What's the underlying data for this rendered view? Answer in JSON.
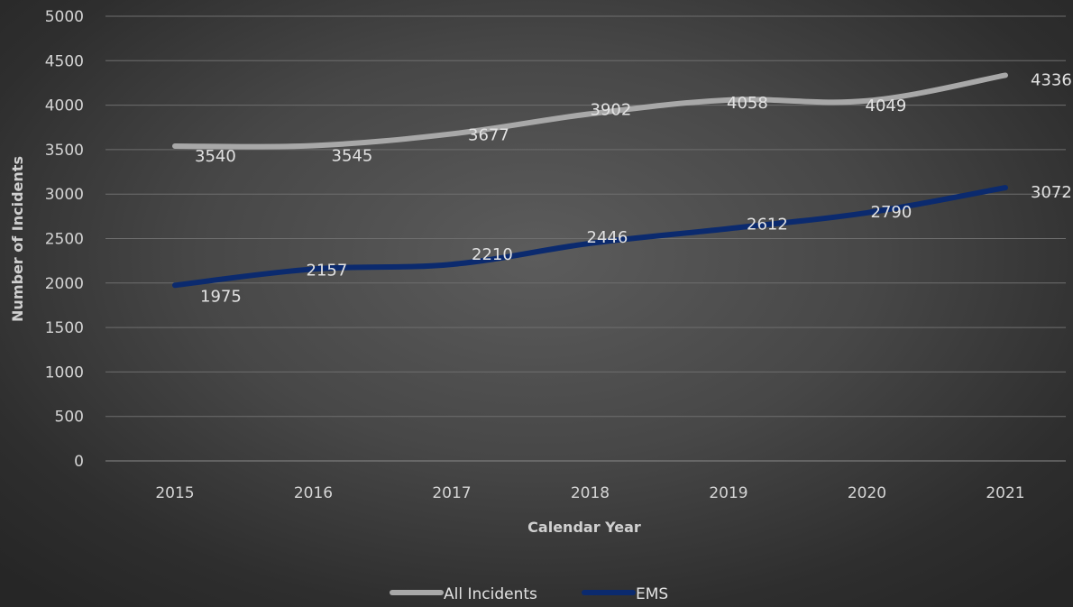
{
  "chart_data": {
    "type": "line",
    "title": "",
    "xlabel": "Calendar Year",
    "ylabel": "Number of Incidents",
    "categories": [
      "2015",
      "2016",
      "2017",
      "2018",
      "2019",
      "2020",
      "2021"
    ],
    "ylim": [
      0,
      5000
    ],
    "yticks": [
      0,
      500,
      1000,
      1500,
      2000,
      2500,
      3000,
      3500,
      4000,
      4500,
      5000
    ],
    "grid": true,
    "legend_position": "bottom",
    "series": [
      {
        "name": "All Incidents",
        "values": [
          3540,
          3545,
          3677,
          3902,
          4058,
          4049,
          4336
        ],
        "color": "#a8a8a8"
      },
      {
        "name": "EMS",
        "values": [
          1975,
          2157,
          2210,
          2446,
          2612,
          2790,
          3072
        ],
        "color": "#0b2a6e"
      }
    ]
  }
}
